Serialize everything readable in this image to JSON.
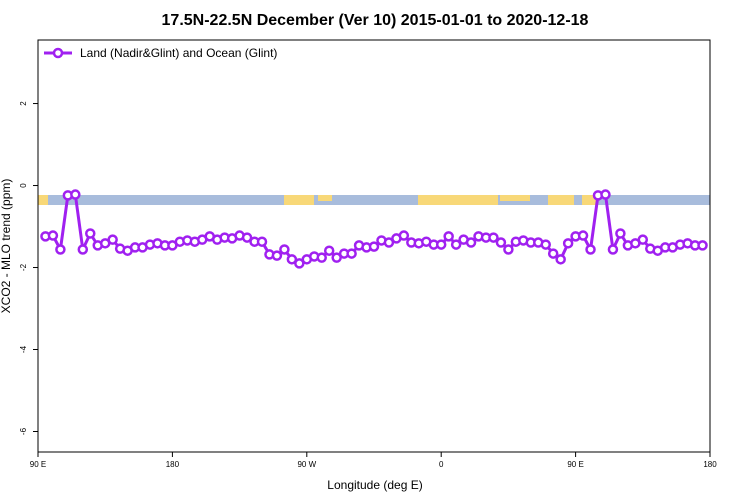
{
  "chart_data": {
    "type": "line",
    "title": "17.5N-22.5N December (Ver 10)   2015-01-01 to 2020-12-18",
    "x_label": "Longitude (deg E)",
    "y_label": "XCO2 - MLO trend (ppm)",
    "xlim": [
      90,
      540
    ],
    "xticks": [
      {
        "value": 90,
        "label": "90 E"
      },
      180,
      {
        "value": 270,
        "label": "90 W"
      },
      {
        "value": 360,
        "label": "0"
      },
      {
        "value": 450,
        "label": "90 E"
      },
      {
        "value": 540,
        "label": "180"
      }
    ],
    "ylim": [
      -6.5,
      3.55
    ],
    "yticks": [
      2,
      0,
      -2,
      -4,
      -6
    ],
    "legend": "top-left",
    "x": [
      95,
      100,
      105,
      110,
      115,
      120,
      125,
      130,
      135,
      140,
      145,
      150,
      155,
      160,
      165,
      170,
      175,
      180,
      185,
      190,
      195,
      200,
      205,
      210,
      215,
      220,
      225,
      230,
      235,
      240,
      245,
      250,
      255,
      260,
      265,
      270,
      275,
      280,
      285,
      290,
      295,
      300,
      305,
      310,
      315,
      320,
      325,
      330,
      335,
      340,
      345,
      350,
      355,
      360,
      365,
      370,
      375,
      380,
      385,
      390,
      395,
      400,
      405,
      410,
      415,
      420,
      425,
      430,
      435,
      440,
      445,
      450,
      455,
      460,
      465,
      470,
      475,
      480,
      485,
      490,
      495,
      500,
      505,
      510,
      515,
      520,
      525,
      530,
      535
    ],
    "series": [
      {
        "name": "Land (Nadir&Glint) and Ocean (Glint)",
        "color": "#a020f0",
        "values": [
          -1.24,
          -1.22,
          -1.56,
          -0.24,
          -0.22,
          -1.56,
          -1.17,
          -1.46,
          -1.41,
          -1.32,
          -1.54,
          -1.59,
          -1.51,
          -1.51,
          -1.44,
          -1.41,
          -1.46,
          -1.46,
          -1.37,
          -1.34,
          -1.37,
          -1.32,
          -1.24,
          -1.32,
          -1.27,
          -1.29,
          -1.22,
          -1.27,
          -1.37,
          -1.37,
          -1.68,
          -1.71,
          -1.56,
          -1.8,
          -1.9,
          -1.8,
          -1.73,
          -1.76,
          -1.59,
          -1.76,
          -1.66,
          -1.66,
          -1.46,
          -1.51,
          -1.49,
          -1.34,
          -1.39,
          -1.29,
          -1.22,
          -1.39,
          -1.41,
          -1.37,
          -1.44,
          -1.44,
          -1.24,
          -1.44,
          -1.32,
          -1.39,
          -1.24,
          -1.27,
          -1.27,
          -1.39,
          -1.56,
          -1.37,
          -1.34,
          -1.39,
          -1.39,
          -1.44,
          -1.66,
          -1.8,
          -1.41,
          -1.24,
          -1.22,
          -1.56,
          -0.24,
          -0.22,
          -1.56,
          -1.17,
          -1.46,
          -1.41,
          -1.32,
          -1.54,
          -1.59,
          -1.51,
          -1.51,
          -1.44,
          -1.41,
          -1.46,
          -1.46
        ]
      }
    ]
  }
}
